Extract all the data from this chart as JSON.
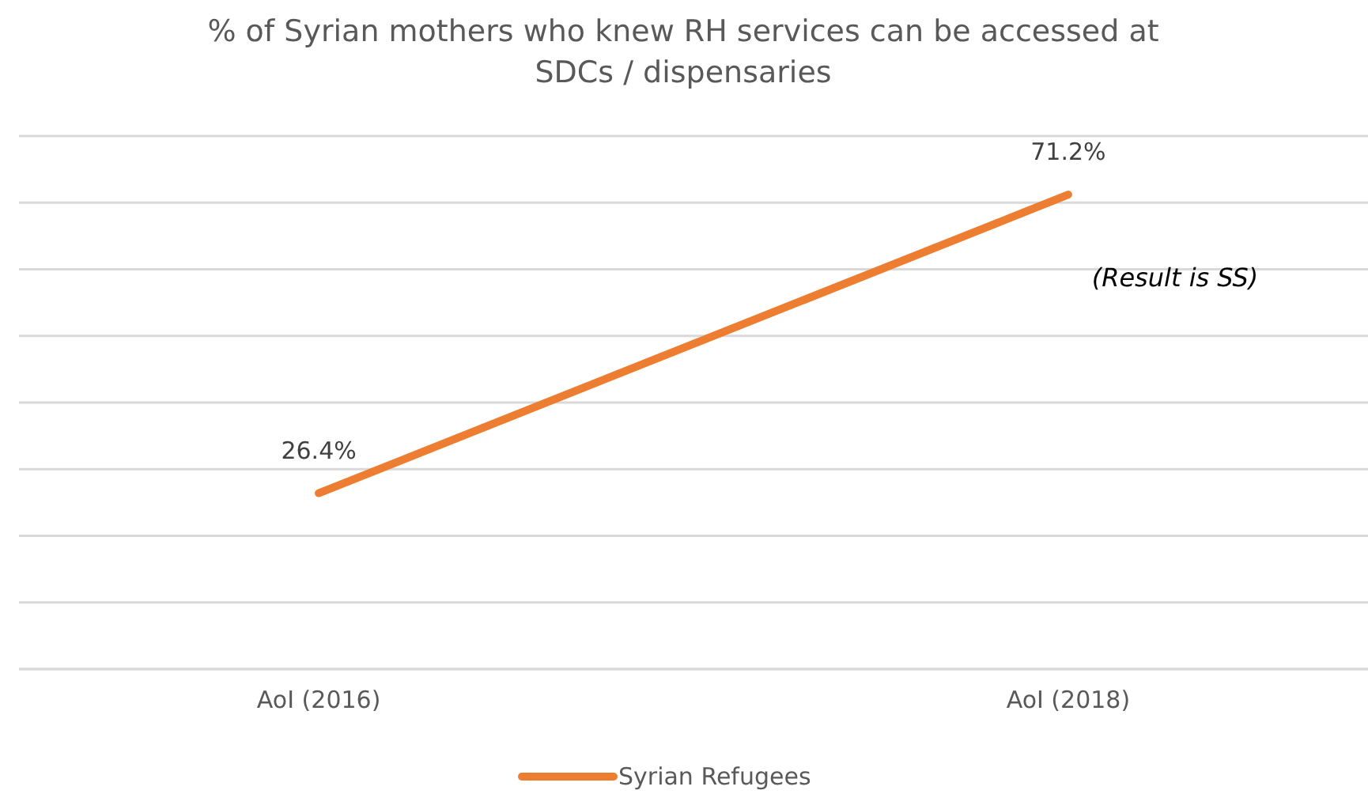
{
  "chart_data": {
    "type": "line",
    "title": "% of Syrian mothers who knew RH services can be accessed at SDCs / dispensaries",
    "categories": [
      "AoI (2016)",
      "AoI (2018)"
    ],
    "series": [
      {
        "name": "Syrian Refugees",
        "color": "#ed7d31",
        "values": [
          26.4,
          71.2
        ],
        "value_labels": [
          "26.4%",
          "71.2%"
        ]
      }
    ],
    "ylim": [
      0,
      80
    ],
    "yticks": [
      {
        "value": 0,
        "label": null
      },
      {
        "value": 10,
        "label": null
      },
      {
        "value": 20,
        "label": null
      },
      {
        "value": 30,
        "label": null
      },
      {
        "value": 40,
        "label": null
      },
      {
        "value": 50,
        "label": null
      },
      {
        "value": 60,
        "label": null
      },
      {
        "value": 70,
        "label": null
      },
      {
        "value": 80,
        "label": null
      }
    ],
    "tick_labels": "x",
    "grid": "y",
    "legend": "bottom",
    "marker": "none",
    "line_style": "solid",
    "annotations": [
      "(Result is SS)"
    ]
  }
}
